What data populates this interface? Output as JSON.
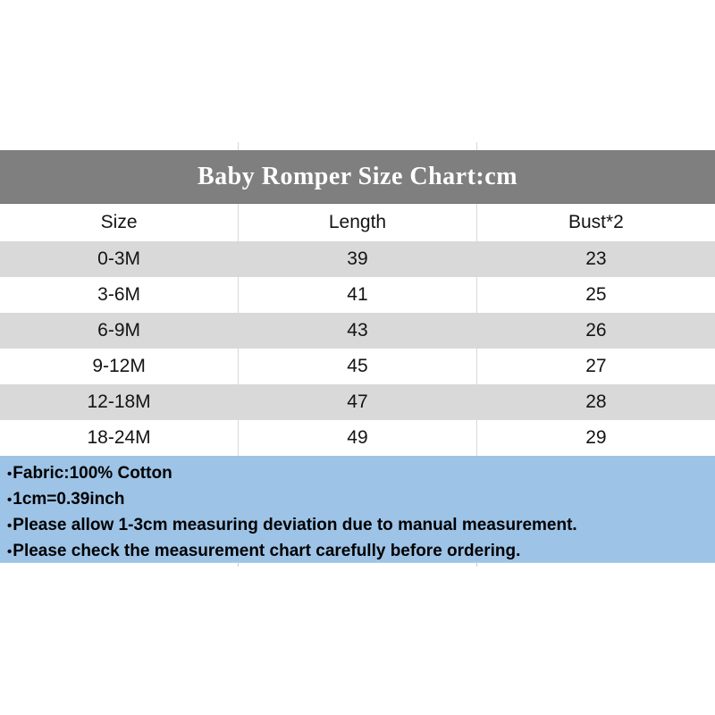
{
  "title": {
    "text": "Baby Romper Size Chart:cm"
  },
  "table": {
    "headers": [
      "Size",
      "Length",
      "Bust*2"
    ],
    "rows": [
      [
        "0-3M",
        "39",
        "23"
      ],
      [
        "3-6M",
        "41",
        "25"
      ],
      [
        "6-9M",
        "43",
        "26"
      ],
      [
        "9-12M",
        "45",
        "27"
      ],
      [
        "12-18M",
        "47",
        "28"
      ],
      [
        "18-24M",
        "49",
        "29"
      ]
    ]
  },
  "notes": {
    "bullet": "•",
    "lines": [
      "Fabric:100% Cotton",
      "1cm=0.39inch",
      "Please allow 1-3cm measuring deviation due to manual measurement.",
      "Please check the measurement chart carefully before ordering."
    ]
  },
  "colors": {
    "title_bar_bg": "#7f7f7f",
    "title_text": "#ffffff",
    "row_bg": "#ffffff",
    "row_alt_bg": "#d9d9d9",
    "notes_bg": "#9dc3e6",
    "cell_text": "#141414",
    "divider": "#d9d9d9"
  },
  "chart_data": {
    "type": "table",
    "title": "Baby Romper Size Chart:cm",
    "unit": "cm",
    "columns": [
      "Size",
      "Length",
      "Bust*2"
    ],
    "rows": [
      [
        "0-3M",
        39,
        23
      ],
      [
        "3-6M",
        41,
        25
      ],
      [
        "6-9M",
        43,
        26
      ],
      [
        "9-12M",
        45,
        27
      ],
      [
        "12-18M",
        47,
        28
      ],
      [
        "18-24M",
        49,
        29
      ]
    ],
    "notes": [
      "Fabric:100% Cotton",
      "1cm=0.39inch",
      "Please allow 1-3cm measuring deviation due to manual measurement.",
      "Please check the measurement chart carefully before ordering."
    ]
  }
}
